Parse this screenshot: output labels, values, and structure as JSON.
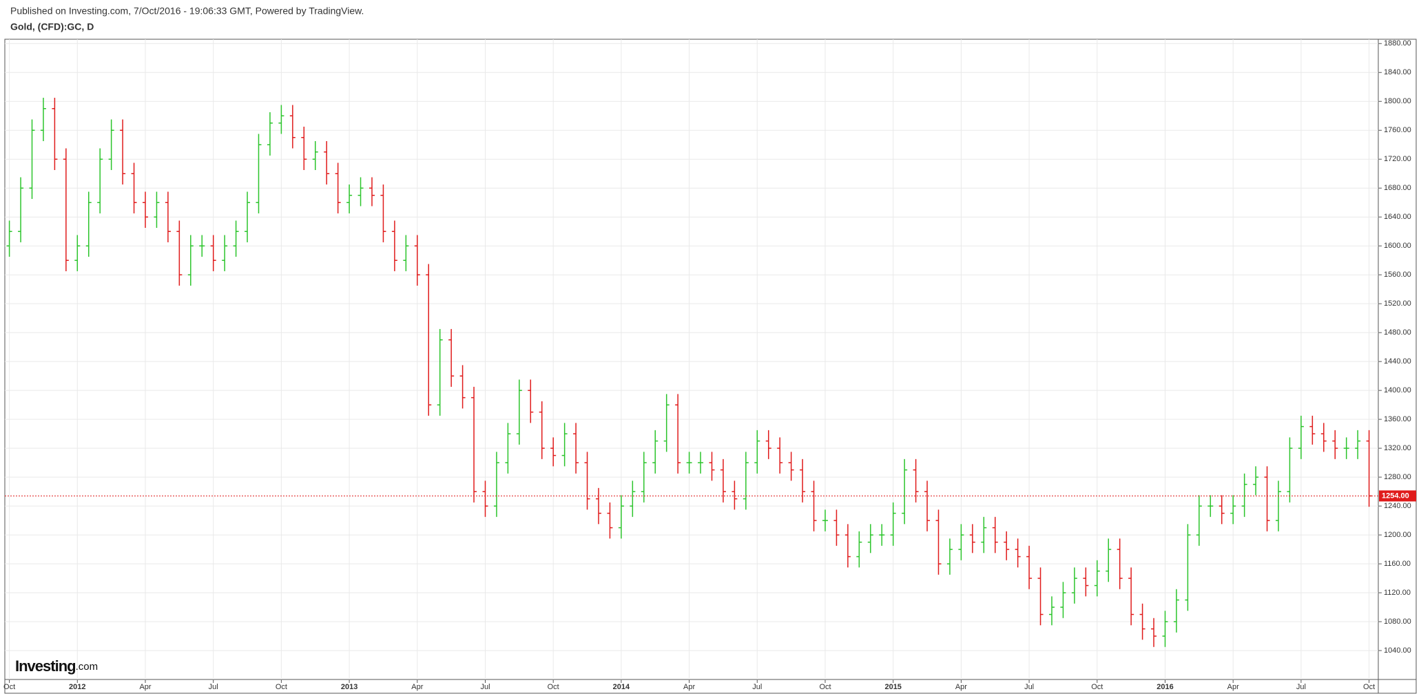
{
  "header": {
    "published": "Published on Investing.com, 7/Oct/2016 - 19:06:33 GMT, Powered by TradingView.",
    "logo": "Investing",
    "logo_suffix": ".com"
  },
  "chart_data": {
    "type": "ohlc",
    "title": "Gold, (CFD):GC, D",
    "up_color": "#2bc42b",
    "down_color": "#e01b1b",
    "grid": true,
    "categories": [
      "Oct",
      null,
      null,
      null,
      null,
      null,
      "2012",
      null,
      null,
      null,
      null,
      null,
      "Apr",
      null,
      null,
      null,
      null,
      null,
      "Jul",
      null,
      null,
      null,
      null,
      null,
      "Oct",
      null,
      null,
      null,
      null,
      null,
      "2013",
      null,
      null,
      null,
      null,
      null,
      "Apr",
      null,
      null,
      null,
      null,
      null,
      "Jul",
      null,
      null,
      null,
      null,
      null,
      "Oct",
      null,
      null,
      null,
      null,
      null,
      "2014",
      null,
      null,
      null,
      null,
      null,
      "Apr",
      null,
      null,
      null,
      null,
      null,
      "Jul",
      null,
      null,
      null,
      null,
      null,
      "Oct",
      null,
      null,
      null,
      null,
      null,
      "2015",
      null,
      null,
      null,
      null,
      null,
      "Apr",
      null,
      null,
      null,
      null,
      null,
      "Jul",
      null,
      null,
      null,
      null,
      null,
      "Oct",
      null,
      null,
      null,
      null,
      null,
      "2016",
      null,
      null,
      null,
      null,
      null,
      "Apr",
      null,
      null,
      null,
      null,
      null,
      "Jul",
      null,
      null,
      null,
      null,
      null,
      "Oct"
    ],
    "open": [
      1600,
      1620,
      1680,
      1760,
      1790,
      1720,
      1580,
      1600,
      1660,
      1720,
      1760,
      1700,
      1660,
      1640,
      1660,
      1620,
      1560,
      1600,
      1600,
      1580,
      1600,
      1620,
      1660,
      1740,
      1770,
      1780,
      1750,
      1720,
      1730,
      1700,
      1660,
      1670,
      1680,
      1670,
      1620,
      1580,
      1600,
      1560,
      1380,
      1470,
      1420,
      1390,
      1260,
      1240,
      1300,
      1340,
      1400,
      1370,
      1320,
      1310,
      1340,
      1300,
      1250,
      1230,
      1210,
      1240,
      1260,
      1300,
      1330,
      1380,
      1300,
      1300,
      1300,
      1290,
      1260,
      1250,
      1300,
      1330,
      1320,
      1300,
      1290,
      1260,
      1220,
      1220,
      1200,
      1170,
      1190,
      1200,
      1200,
      1230,
      1290,
      1260,
      1220,
      1160,
      1180,
      1200,
      1190,
      1210,
      1190,
      1180,
      1170,
      1140,
      1090,
      1100,
      1120,
      1140,
      1130,
      1150,
      1180,
      1140,
      1090,
      1070,
      1060,
      1080,
      1110,
      1200,
      1240,
      1240,
      1230,
      1240,
      1270,
      1280,
      1220,
      1260,
      1320,
      1350,
      1340,
      1330,
      1320,
      1320,
      1330
    ],
    "high": [
      1635,
      1695,
      1775,
      1805,
      1805,
      1735,
      1615,
      1675,
      1735,
      1775,
      1775,
      1715,
      1675,
      1675,
      1675,
      1635,
      1615,
      1615,
      1615,
      1615,
      1635,
      1675,
      1755,
      1785,
      1795,
      1795,
      1765,
      1745,
      1745,
      1715,
      1685,
      1695,
      1695,
      1685,
      1635,
      1615,
      1615,
      1575,
      1485,
      1485,
      1435,
      1405,
      1275,
      1315,
      1355,
      1415,
      1415,
      1385,
      1335,
      1355,
      1355,
      1315,
      1265,
      1245,
      1255,
      1275,
      1315,
      1345,
      1395,
      1395,
      1315,
      1315,
      1315,
      1305,
      1275,
      1315,
      1345,
      1345,
      1335,
      1315,
      1305,
      1275,
      1235,
      1235,
      1215,
      1205,
      1215,
      1215,
      1245,
      1305,
      1305,
      1275,
      1235,
      1195,
      1215,
      1215,
      1225,
      1225,
      1205,
      1195,
      1185,
      1155,
      1115,
      1135,
      1155,
      1155,
      1165,
      1195,
      1195,
      1155,
      1105,
      1085,
      1095,
      1125,
      1215,
      1255,
      1255,
      1255,
      1255,
      1285,
      1295,
      1295,
      1275,
      1335,
      1365,
      1365,
      1355,
      1345,
      1335,
      1345,
      1345
    ],
    "low": [
      1585,
      1605,
      1665,
      1745,
      1705,
      1565,
      1565,
      1585,
      1645,
      1705,
      1685,
      1645,
      1625,
      1625,
      1605,
      1545,
      1545,
      1585,
      1565,
      1565,
      1585,
      1605,
      1645,
      1725,
      1755,
      1735,
      1705,
      1705,
      1685,
      1645,
      1645,
      1655,
      1655,
      1605,
      1565,
      1565,
      1545,
      1365,
      1365,
      1405,
      1375,
      1245,
      1225,
      1225,
      1285,
      1325,
      1355,
      1305,
      1295,
      1295,
      1285,
      1235,
      1215,
      1195,
      1195,
      1225,
      1245,
      1285,
      1315,
      1285,
      1285,
      1285,
      1275,
      1245,
      1235,
      1235,
      1285,
      1305,
      1285,
      1275,
      1245,
      1205,
      1205,
      1185,
      1155,
      1155,
      1175,
      1185,
      1185,
      1215,
      1245,
      1205,
      1145,
      1145,
      1165,
      1175,
      1175,
      1175,
      1165,
      1155,
      1125,
      1075,
      1075,
      1085,
      1105,
      1115,
      1115,
      1135,
      1125,
      1075,
      1055,
      1045,
      1045,
      1065,
      1095,
      1185,
      1225,
      1215,
      1215,
      1225,
      1255,
      1205,
      1205,
      1245,
      1305,
      1325,
      1315,
      1305,
      1305,
      1305,
      1239
    ],
    "close": [
      1620,
      1680,
      1760,
      1790,
      1720,
      1580,
      1600,
      1660,
      1720,
      1760,
      1700,
      1660,
      1640,
      1660,
      1620,
      1560,
      1600,
      1600,
      1580,
      1600,
      1620,
      1660,
      1740,
      1770,
      1780,
      1750,
      1720,
      1730,
      1700,
      1660,
      1670,
      1680,
      1670,
      1620,
      1580,
      1600,
      1560,
      1380,
      1470,
      1420,
      1390,
      1260,
      1240,
      1300,
      1340,
      1400,
      1370,
      1320,
      1310,
      1340,
      1300,
      1250,
      1230,
      1210,
      1240,
      1260,
      1300,
      1330,
      1380,
      1300,
      1300,
      1300,
      1290,
      1260,
      1250,
      1300,
      1330,
      1320,
      1300,
      1290,
      1260,
      1220,
      1220,
      1200,
      1170,
      1190,
      1200,
      1200,
      1230,
      1290,
      1260,
      1220,
      1160,
      1180,
      1200,
      1190,
      1210,
      1190,
      1180,
      1170,
      1140,
      1090,
      1100,
      1120,
      1140,
      1130,
      1150,
      1180,
      1140,
      1090,
      1070,
      1060,
      1080,
      1110,
      1200,
      1240,
      1240,
      1230,
      1240,
      1270,
      1280,
      1220,
      1260,
      1320,
      1350,
      1340,
      1330,
      1320,
      1320,
      1330,
      1254
    ],
    "price_line": {
      "value": 1254,
      "label": "1254.00"
    },
    "ylim": [
      1000,
      1886
    ],
    "yticks": [
      {
        "value": 1040,
        "label": "1040.00"
      },
      {
        "value": 1080,
        "label": "1080.00"
      },
      {
        "value": 1120,
        "label": "1120.00"
      },
      {
        "value": 1160,
        "label": "1160.00"
      },
      {
        "value": 1200,
        "label": "1200.00"
      },
      {
        "value": 1240,
        "label": "1240.00"
      },
      {
        "value": 1280,
        "label": "1280.00"
      },
      {
        "value": 1320,
        "label": "1320.00"
      },
      {
        "value": 1360,
        "label": "1360.00"
      },
      {
        "value": 1400,
        "label": "1400.00"
      },
      {
        "value": 1440,
        "label": "1440.00"
      },
      {
        "value": 1480,
        "label": "1480.00"
      },
      {
        "value": 1520,
        "label": "1520.00"
      },
      {
        "value": 1560,
        "label": "1560.00"
      },
      {
        "value": 1600,
        "label": "1600.00"
      },
      {
        "value": 1640,
        "label": "1640.00"
      },
      {
        "value": 1680,
        "label": "1680.00"
      },
      {
        "value": 1720,
        "label": "1720.00"
      },
      {
        "value": 1760,
        "label": "1760.00"
      },
      {
        "value": 1800,
        "label": "1800.00"
      },
      {
        "value": 1840,
        "label": "1840.00"
      },
      {
        "value": 1880,
        "label": "1880.00"
      }
    ]
  }
}
